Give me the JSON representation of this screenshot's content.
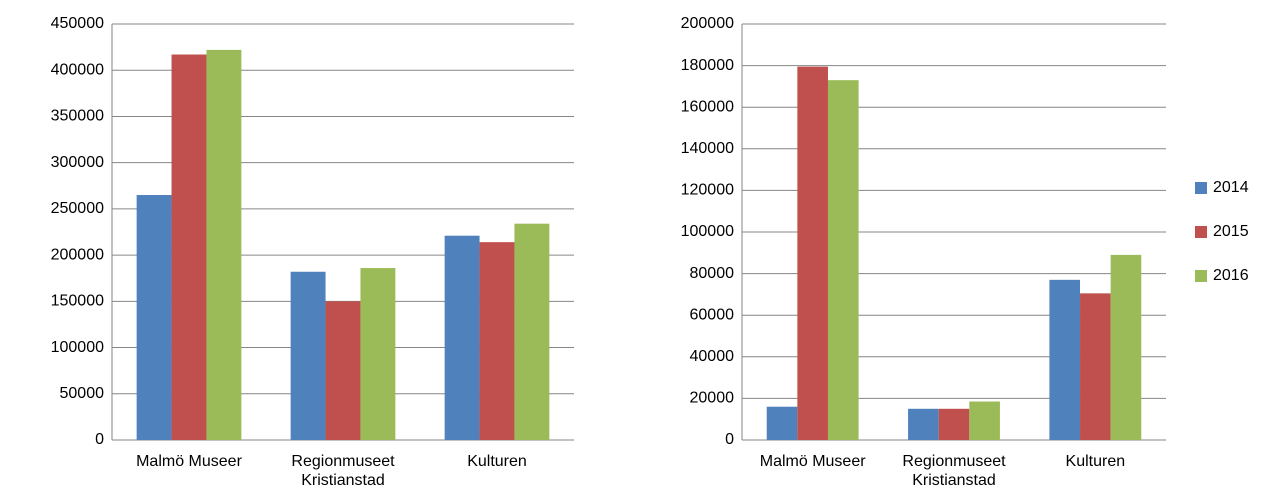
{
  "chart_data": [
    {
      "type": "bar",
      "categories": [
        "Malmö Museer",
        "Regionmuseet Kristianstad",
        "Kulturen"
      ],
      "series": [
        {
          "name": "2014",
          "color": "#4f81bd",
          "values": [
            265000,
            182000,
            221000
          ]
        },
        {
          "name": "2015",
          "color": "#c0504d",
          "values": [
            417000,
            150000,
            214000
          ]
        },
        {
          "name": "2016",
          "color": "#9bbb59",
          "values": [
            422000,
            186000,
            234000
          ]
        }
      ],
      "ylim": [
        0,
        450000
      ],
      "yticks": [
        0,
        50000,
        100000,
        150000,
        200000,
        250000,
        300000,
        350000,
        400000,
        450000
      ],
      "grid": true
    },
    {
      "type": "bar",
      "categories": [
        "Malmö Museer",
        "Regionmuseet Kristianstad",
        "Kulturen"
      ],
      "series": [
        {
          "name": "2014",
          "color": "#4f81bd",
          "values": [
            16000,
            15000,
            77000
          ]
        },
        {
          "name": "2015",
          "color": "#c0504d",
          "values": [
            179500,
            15000,
            70500
          ]
        },
        {
          "name": "2016",
          "color": "#9bbb59",
          "values": [
            173000,
            18500,
            89000
          ]
        }
      ],
      "ylim": [
        0,
        200000
      ],
      "yticks": [
        0,
        20000,
        40000,
        60000,
        80000,
        100000,
        120000,
        140000,
        160000,
        180000,
        200000
      ],
      "grid": true,
      "legend": "right"
    }
  ]
}
